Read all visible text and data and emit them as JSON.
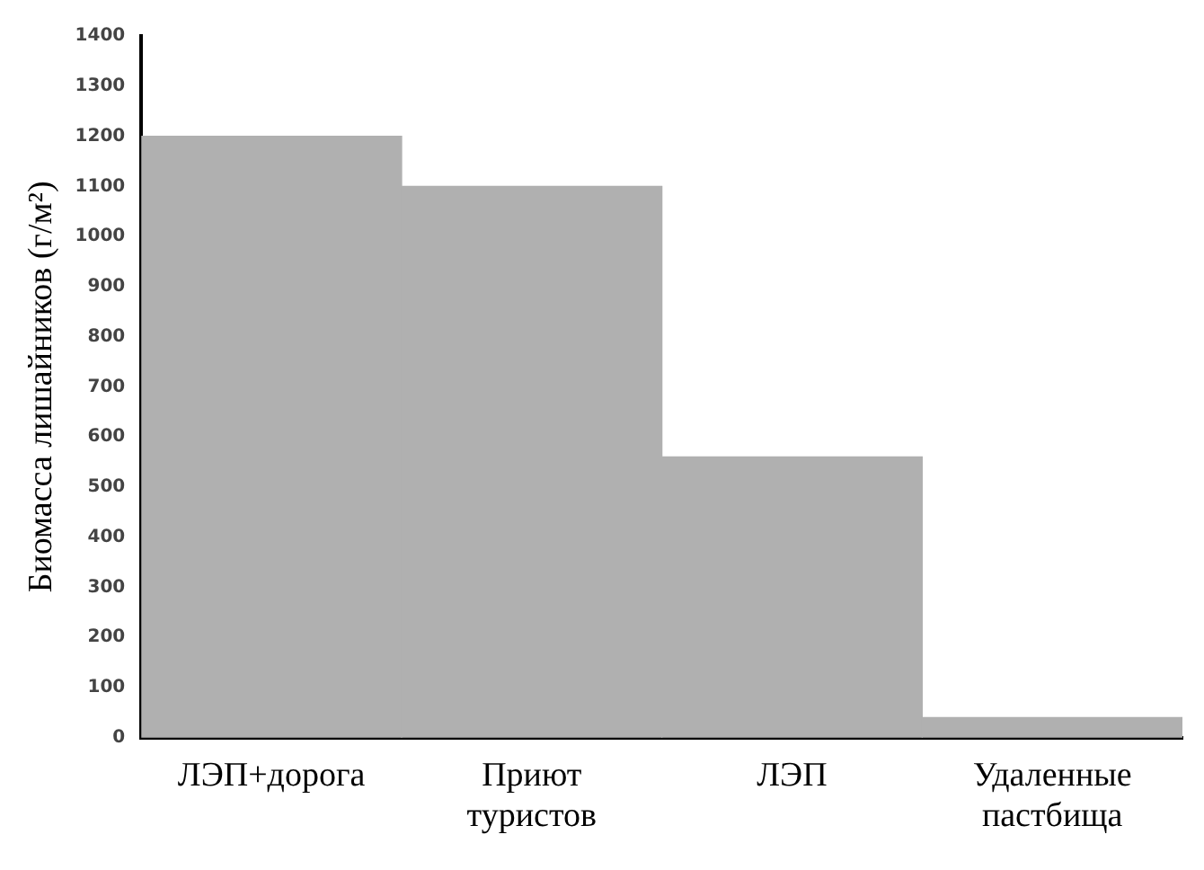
{
  "chart_data": {
    "type": "bar",
    "ylabel": "Биомасса лишайников (г/м²)",
    "categories": [
      "ЛЭП+дорога",
      "Приют туристов",
      "ЛЭП",
      "Удаленные пастбища"
    ],
    "values": [
      1200,
      1100,
      560,
      40
    ],
    "color": "#b0b0b0",
    "ylim": [
      0,
      1400
    ],
    "yticks": [
      0,
      100,
      200,
      300,
      400,
      500,
      600,
      700,
      800,
      900,
      1000,
      1100,
      1200,
      1300,
      1400
    ],
    "grid": false
  }
}
